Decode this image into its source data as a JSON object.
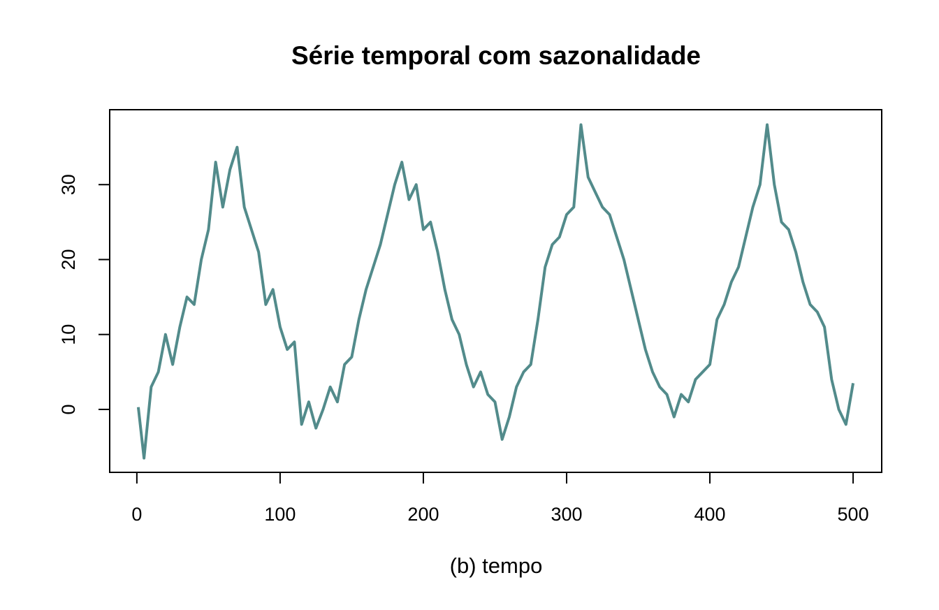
{
  "chart_data": {
    "type": "line",
    "title": "Série temporal com sazonalidade",
    "xlabel": "(b) tempo",
    "x": [
      1,
      5,
      10,
      15,
      20,
      25,
      30,
      35,
      40,
      45,
      50,
      55,
      60,
      65,
      70,
      75,
      80,
      85,
      90,
      95,
      100,
      105,
      110,
      115,
      120,
      125,
      130,
      135,
      140,
      145,
      150,
      155,
      160,
      165,
      170,
      175,
      180,
      185,
      190,
      195,
      200,
      205,
      210,
      215,
      220,
      225,
      230,
      235,
      240,
      245,
      250,
      255,
      260,
      265,
      270,
      275,
      280,
      285,
      290,
      295,
      300,
      305,
      310,
      315,
      320,
      325,
      330,
      335,
      340,
      345,
      350,
      355,
      360,
      365,
      370,
      375,
      380,
      385,
      390,
      395,
      400,
      405,
      410,
      415,
      420,
      425,
      430,
      435,
      440,
      445,
      450,
      455,
      460,
      465,
      470,
      475,
      480,
      485,
      490,
      495,
      500
    ],
    "series": [
      {
        "color": "#528b8b",
        "values": [
          0.3,
          -6.5,
          3,
          5,
          10,
          6,
          11,
          15,
          14,
          20,
          24,
          33,
          27,
          32,
          35,
          27,
          24,
          21,
          14,
          16,
          11,
          8,
          9,
          -2,
          1,
          -2.5,
          0,
          3,
          1,
          6,
          7,
          12,
          16,
          19,
          22,
          26,
          30,
          33,
          28,
          30,
          24,
          25,
          21,
          16,
          12,
          10,
          6,
          3,
          5,
          2,
          1,
          -4,
          -1,
          3,
          5,
          6,
          12,
          19,
          22,
          23,
          26,
          27,
          38,
          31,
          29,
          27,
          26,
          23,
          20,
          16,
          12,
          8,
          5,
          3,
          2,
          -1,
          2,
          1,
          4,
          5,
          6,
          12,
          14,
          17,
          19,
          23,
          27,
          30,
          38,
          30,
          25,
          24,
          21,
          17,
          14,
          13,
          11,
          4,
          0,
          -2,
          3.5
        ]
      }
    ],
    "xlim": [
      -18.96,
      519.96
    ],
    "ylim": [
      -8.4,
      40
    ],
    "xticks": [
      0,
      100,
      200,
      300,
      400,
      500
    ],
    "yticks": [
      0,
      10,
      20,
      30
    ]
  }
}
